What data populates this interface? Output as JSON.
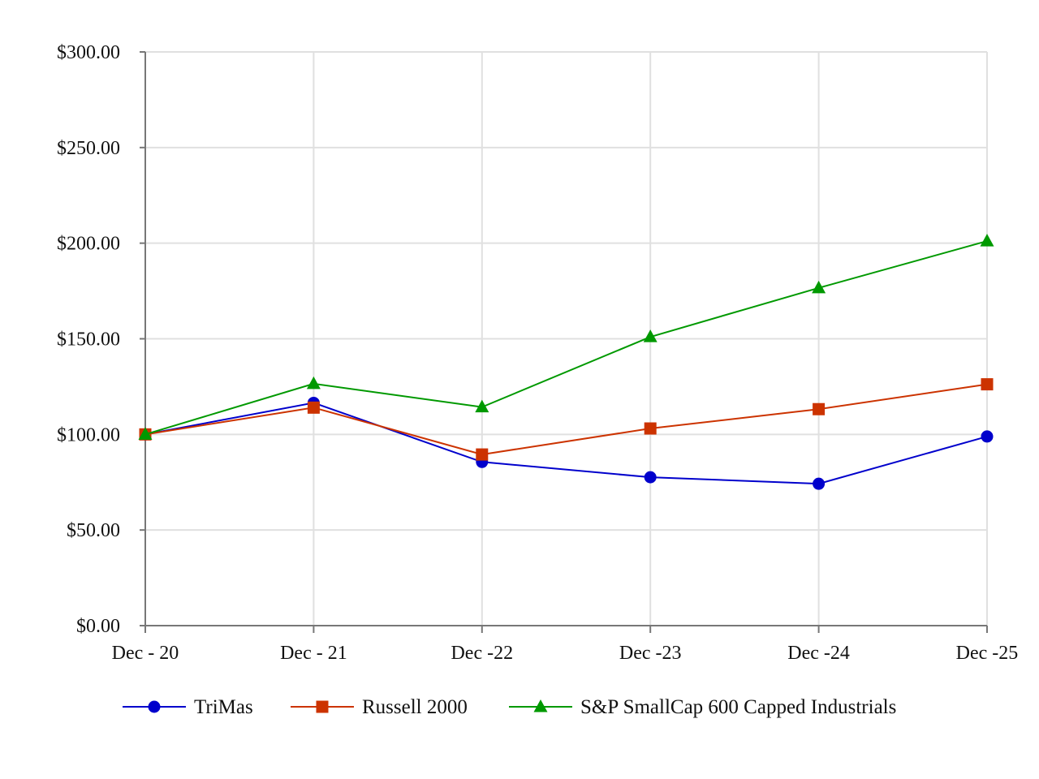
{
  "chart_data": {
    "type": "line",
    "title": "",
    "xlabel": "",
    "ylabel": "",
    "categories": [
      "Dec - 20",
      "Dec - 21",
      "Dec -22",
      "Dec -23",
      "Dec -24",
      "Dec -25"
    ],
    "ylim": [
      0,
      300
    ],
    "yticks": [
      0,
      50,
      100,
      150,
      200,
      250,
      300
    ],
    "ytick_labels": [
      "$0.00",
      "$50.00",
      "$100.00",
      "$150.00",
      "$200.00",
      "$250.00",
      "$300.00"
    ],
    "grid": true,
    "legend_position": "bottom",
    "series": [
      {
        "name": "TriMas",
        "color": "#0000cc",
        "marker": "circle",
        "values": [
          100.0,
          116.5,
          85.6,
          77.6,
          74.2,
          98.9
        ]
      },
      {
        "name": "Russell 2000",
        "color": "#cc3300",
        "marker": "square",
        "values": [
          100.0,
          114.0,
          89.5,
          103.1,
          113.2,
          126.2
        ]
      },
      {
        "name": "S&P SmallCap 600 Capped Industrials",
        "color": "#009900",
        "marker": "triangle",
        "values": [
          100.0,
          126.5,
          114.3,
          151.0,
          176.6,
          201.1
        ]
      }
    ]
  }
}
